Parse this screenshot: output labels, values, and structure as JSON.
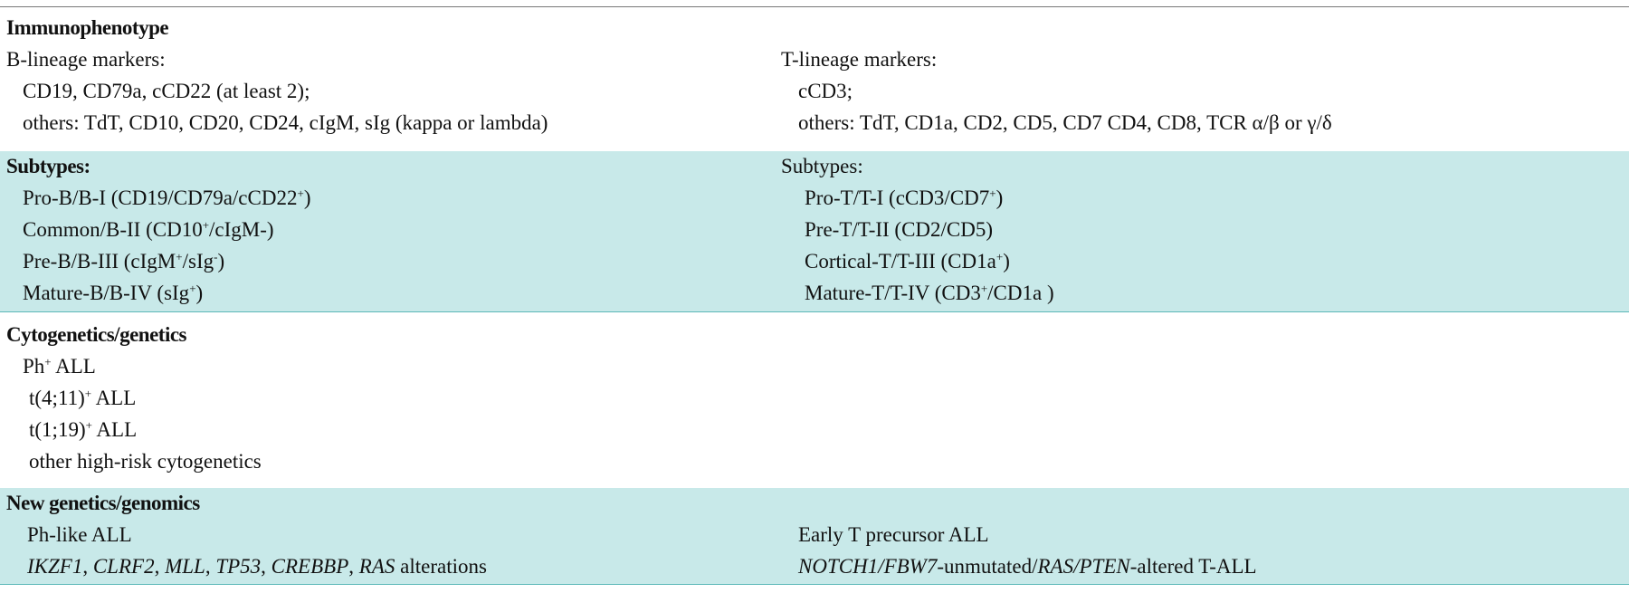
{
  "sections": [
    {
      "title": "Immunophenotype",
      "left": {
        "heading": "B-lineage markers:",
        "lines": [
          "CD19, CD79a, cCD22 (at least 2);",
          "others: TdT, CD10, CD20, CD24, cIgM, sIg (kappa or lambda)"
        ]
      },
      "right": {
        "heading": "T-lineage markers:",
        "lines": [
          "cCD3;",
          "others: TdT, CD1a, CD2, CD5, CD7 CD4, CD8, TCR α/β or γ/δ"
        ]
      }
    },
    {
      "left": {
        "heading": "Subtypes:",
        "lines": [
          [
            "Pro-B/B-I (CD19/CD79a/cCD22",
            {
              "sup": "+"
            },
            ")"
          ],
          [
            "Common/B-II (CD10",
            {
              "sup": "+"
            },
            "/cIgM-)"
          ],
          [
            "Pre-B/B-III (cIgM",
            {
              "sup": "+"
            },
            "/sIg",
            {
              "sup": "-"
            },
            ")"
          ],
          [
            "Mature-B/B-IV (sIg",
            {
              "sup": "+"
            },
            ")"
          ]
        ]
      },
      "right": {
        "heading": "Subtypes:",
        "lines": [
          [
            "Pro-T/T-I (cCD3/CD7",
            {
              "sup": "+"
            },
            ")"
          ],
          "Pre-T/T-II (CD2/CD5)",
          [
            "Cortical-T/T-III (CD1a",
            {
              "sup": "+"
            },
            ")"
          ],
          [
            "Mature-T/T-IV (CD3",
            {
              "sup": "+"
            },
            "/CD1a )"
          ]
        ]
      }
    },
    {
      "title": "Cytogenetics/genetics",
      "left": {
        "lines": [
          [
            "Ph",
            {
              "sup": "+"
            },
            " ALL"
          ],
          [
            "t(4;11)",
            {
              "sup": "+"
            },
            " ALL"
          ],
          [
            "t(1;19)",
            {
              "sup": "+"
            },
            " ALL"
          ],
          "other high-risk cytogenetics"
        ]
      }
    },
    {
      "title": "New genetics/genomics",
      "left": {
        "lines": [
          "Ph-like ALL",
          [
            {
              "i": "IKZF1"
            },
            ", ",
            {
              "i": "CLRF2"
            },
            ", ",
            {
              "i": "MLL"
            },
            ", ",
            {
              "i": "TP53"
            },
            ", ",
            {
              "i": "CREBBP"
            },
            ", ",
            {
              "i": "RAS"
            },
            " alterations"
          ]
        ]
      },
      "right": {
        "lines": [
          "Early T precursor ALL",
          [
            {
              "i": "NOTCH1/FBW7"
            },
            "-unmutated/",
            {
              "i": "RAS/PTEN"
            },
            "-altered T-ALL"
          ]
        ]
      }
    }
  ]
}
